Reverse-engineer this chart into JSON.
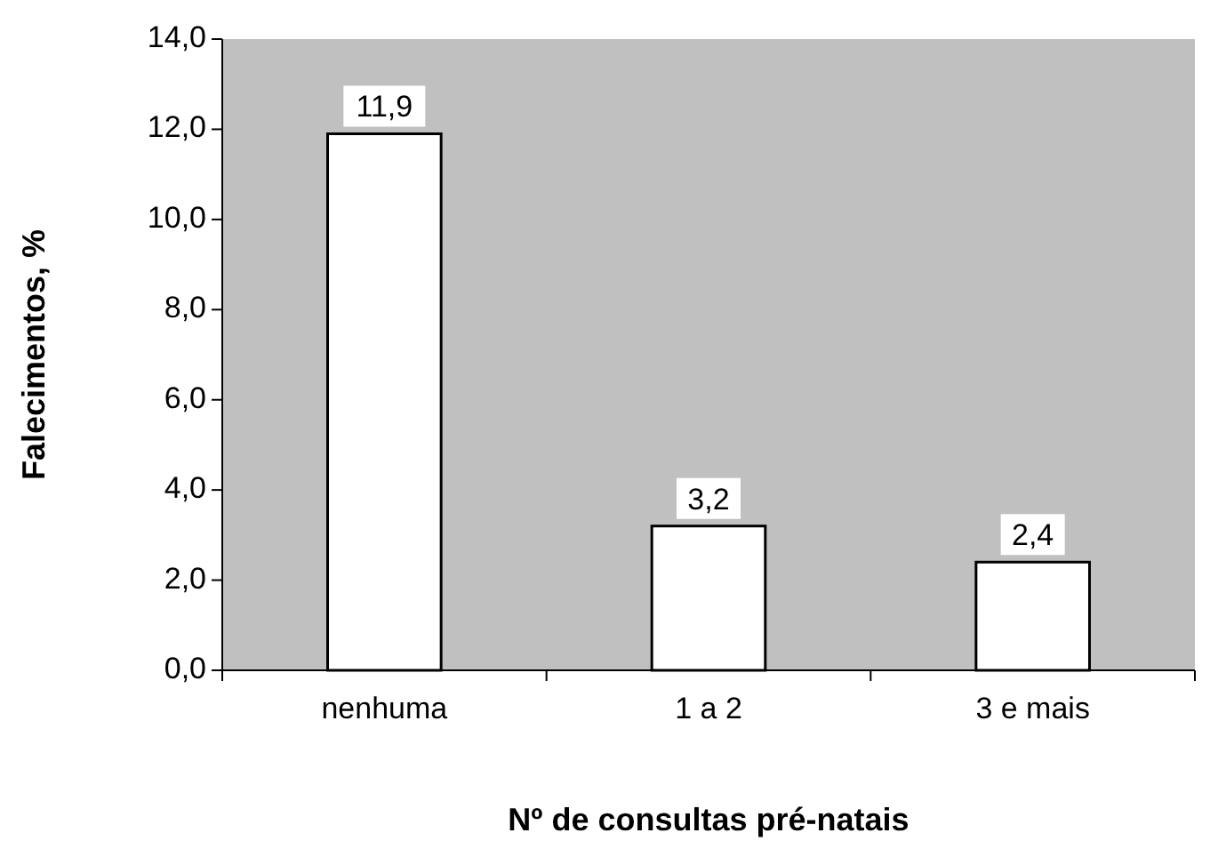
{
  "chart_data": {
    "type": "bar",
    "categories": [
      "nenhuma",
      "1 a 2",
      "3 e mais"
    ],
    "values": [
      11.9,
      3.2,
      2.4
    ],
    "value_labels": [
      "11,9",
      "3,2",
      "2,4"
    ],
    "color": "#ffffff",
    "ylim": [
      0,
      14
    ],
    "yticks": [
      {
        "value": 0,
        "label": "0,0"
      },
      {
        "value": 2,
        "label": "2,0"
      },
      {
        "value": 4,
        "label": "4,0"
      },
      {
        "value": 6,
        "label": "6,0"
      },
      {
        "value": 8,
        "label": "8,0"
      },
      {
        "value": 10,
        "label": "10,0"
      },
      {
        "value": 12,
        "label": "12,0"
      },
      {
        "value": 14,
        "label": "14,0"
      }
    ],
    "xlabel": "Nº de consultas pré-natais",
    "ylabel": "Falecimentos, %"
  }
}
